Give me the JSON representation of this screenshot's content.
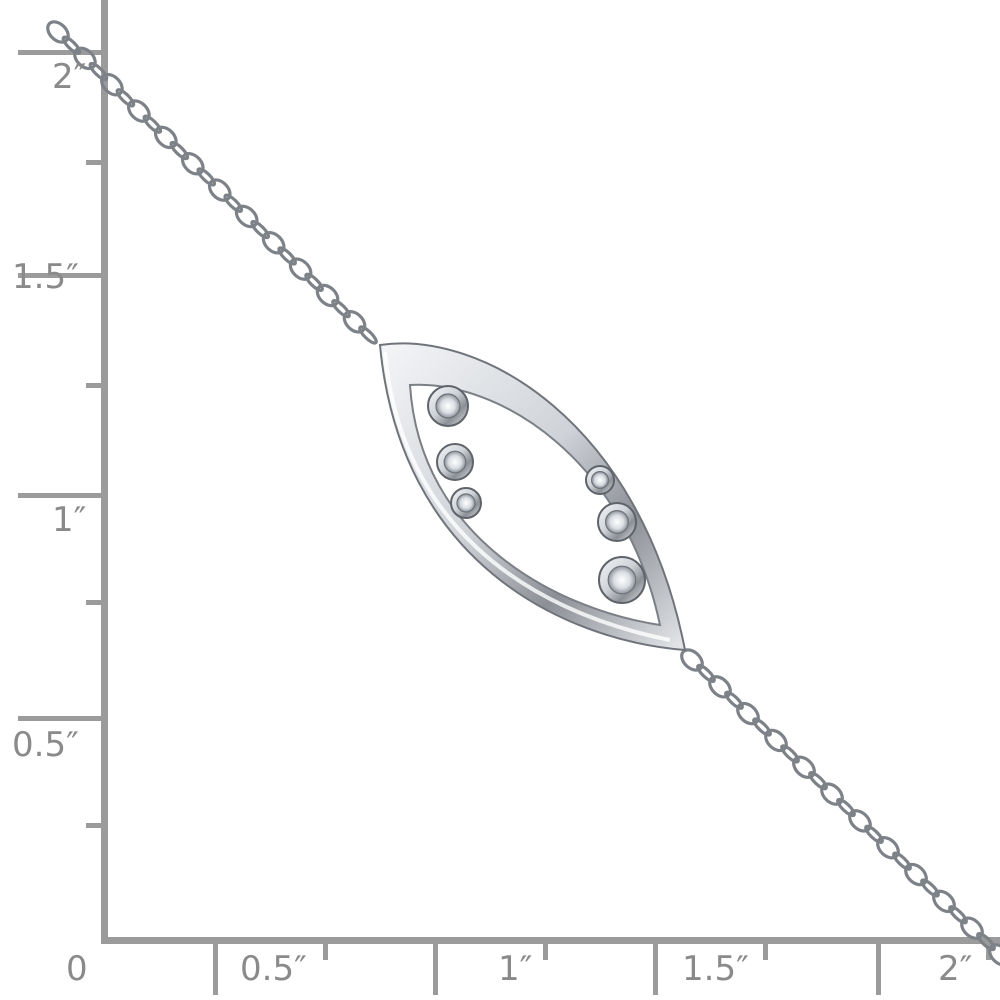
{
  "ruler": {
    "color": "#9b9b9b",
    "label_color": "#8a8a8a",
    "vertical_labels": [
      "2″",
      "1.5″",
      "1″",
      "0.5″"
    ],
    "horizontal_labels": [
      "0",
      "0.5″",
      "1″",
      "1.5″",
      "2″"
    ]
  },
  "product": {
    "icon": "bracelet-marquise-pendant-with-bezel-diamonds",
    "metal_color": "#c9cdd2",
    "stone_count": 6
  }
}
